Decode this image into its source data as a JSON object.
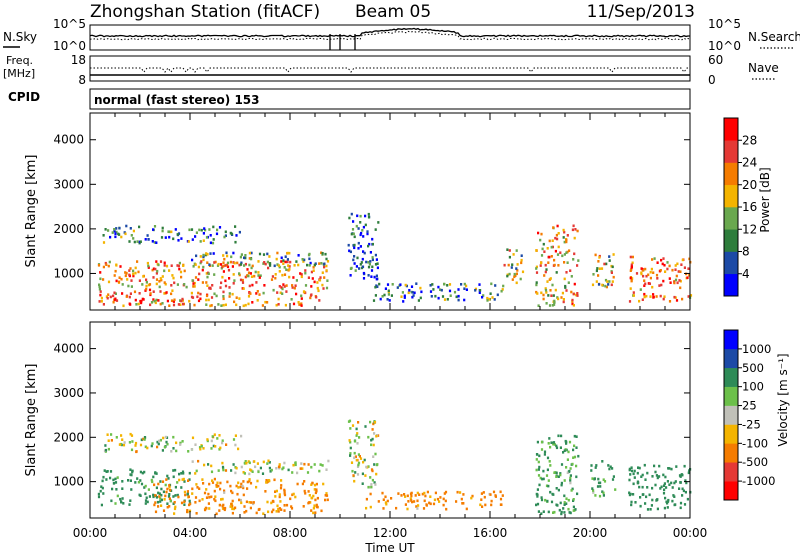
{
  "header": {
    "title": "Zhongshan Station (fitACF)",
    "beam": "Beam 05",
    "date": "11/Sep/2013"
  },
  "top_panels": {
    "nsky_label": "N.Sky",
    "nsearch_label": "N.Search",
    "freq_label_1": "Freq.",
    "freq_label_2": "[MHz]",
    "nave_label": "Nave",
    "cpid_label": "CPID",
    "cpid_text": "normal (fast stereo) 153",
    "noise_left_ticks": [
      "10^5",
      "10^0"
    ],
    "noise_right_ticks": [
      "10^5",
      "10^0"
    ],
    "freq_left_ticks": [
      "18",
      "8"
    ],
    "nave_right_ticks": [
      "60",
      "0"
    ]
  },
  "colors": {
    "power_scale": [
      "#0000ff",
      "#1c4aa6",
      "#2e7d3c",
      "#6aa84f",
      "#f4b400",
      "#f57c00",
      "#e53935",
      "#ff0000"
    ],
    "velocity_scale": [
      "#ff0000",
      "#e53935",
      "#f57c00",
      "#f4b400",
      "#c0c0b8",
      "#6cc04a",
      "#2e8b57",
      "#1c4aa6",
      "#0000ff"
    ]
  },
  "chart_data": [
    {
      "type": "heatmap",
      "ylabel": "Slant Range [km]",
      "xlabel": "",
      "x_ticks": [
        "00:00",
        "04:00",
        "08:00",
        "12:00",
        "16:00",
        "20:00",
        "00:00"
      ],
      "y_ticks": [
        "1000",
        "2000",
        "3000",
        "4000"
      ],
      "ylim": [
        180,
        4600
      ],
      "colorbar_label": "Power [dB]",
      "colorbar_ticks": [
        "4",
        "8",
        "12",
        "16",
        "20",
        "24",
        "28"
      ],
      "colorbar_range": [
        0,
        32
      ],
      "regions": [
        {
          "t0": 0.3,
          "t1": 9.5,
          "r0": 300,
          "r1": 1300,
          "v": 22
        },
        {
          "t0": 0.5,
          "t1": 6.0,
          "r0": 1700,
          "r1": 2100,
          "v": 8
        },
        {
          "t0": 4.0,
          "t1": 9.5,
          "r0": 1200,
          "r1": 1500,
          "v": 12
        },
        {
          "t0": 10.3,
          "t1": 11.5,
          "r0": 900,
          "r1": 2400,
          "v": 6
        },
        {
          "t0": 11.0,
          "t1": 16.5,
          "r0": 400,
          "r1": 800,
          "v": 10
        },
        {
          "t0": 16.5,
          "t1": 17.3,
          "r0": 800,
          "r1": 1600,
          "v": 16
        },
        {
          "t0": 17.8,
          "t1": 19.5,
          "r0": 300,
          "r1": 2100,
          "v": 20
        },
        {
          "t0": 20.0,
          "t1": 21.0,
          "r0": 700,
          "r1": 1500,
          "v": 16
        },
        {
          "t0": 21.5,
          "t1": 24.0,
          "r0": 400,
          "r1": 1400,
          "v": 24
        }
      ]
    },
    {
      "type": "heatmap",
      "xlabel": "Time UT",
      "ylabel": "Slant Range [km]",
      "x_ticks": [
        "00:00",
        "04:00",
        "08:00",
        "12:00",
        "16:00",
        "20:00",
        "00:00"
      ],
      "y_ticks": [
        "1000",
        "2000",
        "3000",
        "4000"
      ],
      "ylim": [
        180,
        4600
      ],
      "colorbar_label": "Velocity [m s⁻¹]",
      "colorbar_ticks": [
        "1000",
        "500",
        "100",
        "25",
        "-25",
        "-100",
        "-500",
        "-1000"
      ],
      "regions": [
        {
          "t0": 0.3,
          "t1": 4.0,
          "r0": 500,
          "r1": 1300,
          "v": 200
        },
        {
          "t0": 2.5,
          "t1": 9.5,
          "r0": 300,
          "r1": 1100,
          "v": -150
        },
        {
          "t0": 0.5,
          "t1": 6.0,
          "r0": 1700,
          "r1": 2100,
          "v": 10
        },
        {
          "t0": 4.0,
          "t1": 9.5,
          "r0": 1200,
          "r1": 1500,
          "v": 10
        },
        {
          "t0": 10.3,
          "t1": 11.5,
          "r0": 900,
          "r1": 2400,
          "v": 10
        },
        {
          "t0": 11.0,
          "t1": 16.5,
          "r0": 400,
          "r1": 800,
          "v": -150
        },
        {
          "t0": 17.8,
          "t1": 19.5,
          "r0": 300,
          "r1": 2100,
          "v": 150
        },
        {
          "t0": 20.0,
          "t1": 21.0,
          "r0": 700,
          "r1": 1500,
          "v": 150
        },
        {
          "t0": 21.5,
          "t1": 24.0,
          "r0": 400,
          "r1": 1400,
          "v": 300
        }
      ]
    }
  ]
}
